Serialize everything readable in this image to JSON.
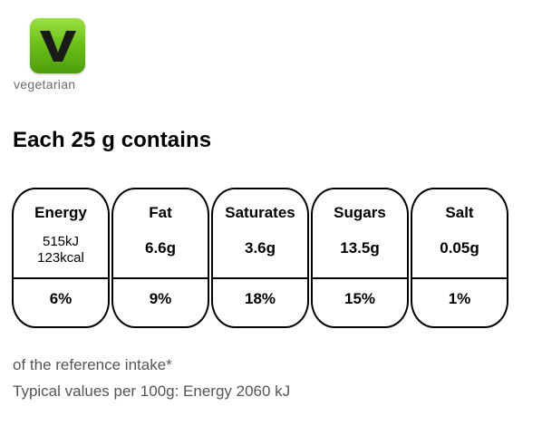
{
  "badge": {
    "letter": "V",
    "label": "vegetarian",
    "color": "#6cc219"
  },
  "heading": "Each 25 g contains",
  "tiles": [
    {
      "name": "Energy",
      "value_kj": "515kJ",
      "value_kcal": "123kcal",
      "percent": "6%"
    },
    {
      "name": "Fat",
      "value": "6.6g",
      "percent": "9%"
    },
    {
      "name": "Saturates",
      "value": "3.6g",
      "percent": "18%"
    },
    {
      "name": "Sugars",
      "value": "13.5g",
      "percent": "15%"
    },
    {
      "name": "Salt",
      "value": "0.05g",
      "percent": "1%"
    }
  ],
  "footnotes": {
    "reference": "of the reference intake*",
    "typical": "Typical values per 100g: Energy 2060 kJ"
  }
}
